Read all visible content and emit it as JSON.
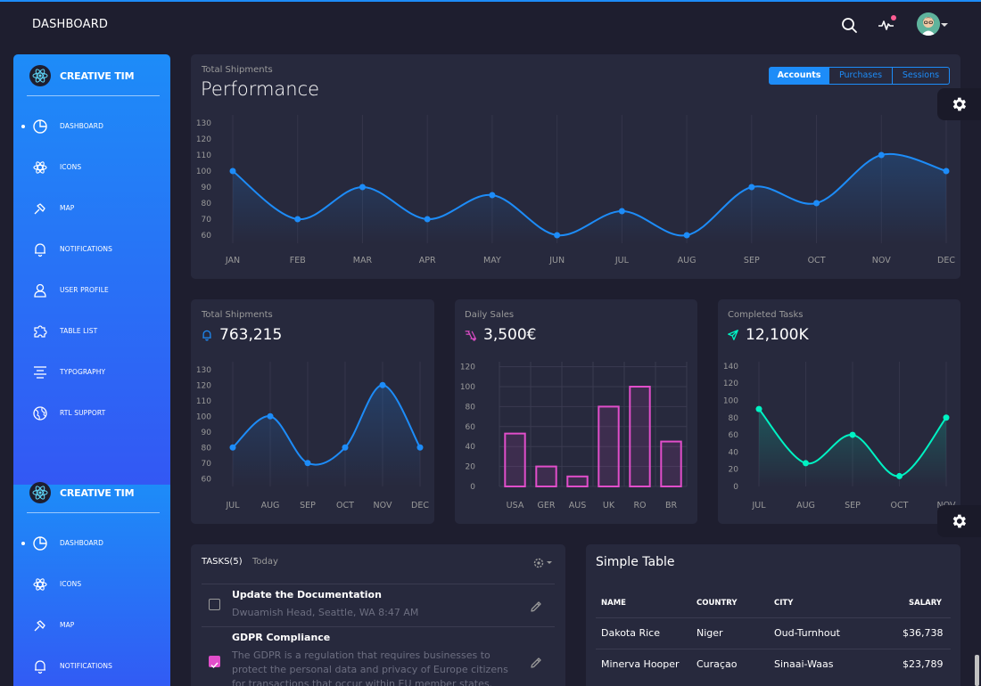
{
  "navbar": {
    "brand": "DASHBOARD",
    "icons": [
      "search-icon",
      "activity-icon",
      "avatar",
      "chevron-down-icon"
    ]
  },
  "sidebar": {
    "title": "CREATIVE TIM",
    "active": "DASHBOARD",
    "items": [
      {
        "label": "DASHBOARD",
        "icon": "pie-chart-icon"
      },
      {
        "label": "ICONS",
        "icon": "atom-icon"
      },
      {
        "label": "MAP",
        "icon": "pin-icon"
      },
      {
        "label": "NOTIFICATIONS",
        "icon": "bell-icon"
      },
      {
        "label": "USER PROFILE",
        "icon": "user-icon"
      },
      {
        "label": "TABLE LIST",
        "icon": "puzzle-icon"
      },
      {
        "label": "TYPOGRAPHY",
        "icon": "align-center-icon"
      },
      {
        "label": "RTL SUPPORT",
        "icon": "globe-icon"
      }
    ],
    "second_items": [
      {
        "label": "DASHBOARD"
      },
      {
        "label": "ICONS"
      },
      {
        "label": "MAP"
      },
      {
        "label": "NOTIFICATIONS"
      }
    ]
  },
  "performance": {
    "subtitle": "Total Shipments",
    "title": "Performance",
    "tabs": [
      "Accounts",
      "Purchases",
      "Sessions"
    ],
    "active_tab": "Accounts"
  },
  "cards": {
    "shipments": {
      "subtitle": "Total Shipments",
      "value": "763,215",
      "icon": "bell-icon"
    },
    "sales": {
      "subtitle": "Daily Sales",
      "value": "3,500€",
      "icon": "delivery-icon"
    },
    "tasks": {
      "subtitle": "Completed Tasks",
      "value": "12,100K",
      "icon": "send-icon"
    }
  },
  "colors": {
    "bg": "#1e1e2f",
    "card": "#27293d",
    "primary": "#1d8cf8",
    "pink": "#e14eca",
    "teal": "#00f2c3",
    "grid": "#3a3b50",
    "tick": "#9a9a9a"
  },
  "chart_data": [
    {
      "type": "line",
      "title": "Performance",
      "categories": [
        "JAN",
        "FEB",
        "MAR",
        "APR",
        "MAY",
        "JUN",
        "JUL",
        "AUG",
        "SEP",
        "OCT",
        "NOV",
        "DEC"
      ],
      "values": [
        100,
        70,
        90,
        70,
        85,
        60,
        75,
        60,
        90,
        80,
        110,
        100
      ],
      "y_ticks": [
        60,
        70,
        80,
        90,
        100,
        110,
        120,
        130
      ],
      "ylim": [
        55,
        135
      ],
      "color": "#1d8cf8"
    },
    {
      "type": "line",
      "title": "Total Shipments",
      "categories": [
        "JUL",
        "AUG",
        "SEP",
        "OCT",
        "NOV",
        "DEC"
      ],
      "values": [
        80,
        100,
        70,
        80,
        120,
        80
      ],
      "y_ticks": [
        60,
        70,
        80,
        90,
        100,
        110,
        120,
        130
      ],
      "ylim": [
        55,
        135
      ],
      "color": "#1d8cf8"
    },
    {
      "type": "bar",
      "title": "Daily Sales",
      "categories": [
        "USA",
        "GER",
        "AUS",
        "UK",
        "RO",
        "BR"
      ],
      "values": [
        53,
        20,
        10,
        80,
        100,
        45
      ],
      "y_ticks": [
        0,
        20,
        40,
        60,
        80,
        100,
        120
      ],
      "ylim": [
        0,
        125
      ],
      "color": "#e14eca"
    },
    {
      "type": "line",
      "title": "Completed Tasks",
      "categories": [
        "JUL",
        "AUG",
        "SEP",
        "OCT",
        "NOV"
      ],
      "values": [
        90,
        27,
        60,
        12,
        80
      ],
      "y_ticks": [
        0,
        20,
        40,
        60,
        80,
        100,
        120,
        140
      ],
      "ylim": [
        0,
        145
      ],
      "color": "#00f2c3"
    }
  ],
  "tasks": {
    "title": "TASKS(5)",
    "subtitle": "Today",
    "items": [
      {
        "title": "Update the Documentation",
        "desc": "Dwuamish Head, Seattle, WA 8:47 AM",
        "checked": false
      },
      {
        "title": "GDPR Compliance",
        "desc": "The GDPR is a regulation that requires businesses to protect the personal data and privacy of Europe citizens for transactions that occur within EU member states.",
        "checked": true
      }
    ]
  },
  "table": {
    "title": "Simple Table",
    "headers": [
      "NAME",
      "COUNTRY",
      "CITY",
      "SALARY"
    ],
    "rows": [
      [
        "Dakota Rice",
        "Niger",
        "Oud-Turnhout",
        "$36,738"
      ],
      [
        "Minerva Hooper",
        "Curaçao",
        "Sinaai-Waas",
        "$23,789"
      ]
    ]
  }
}
